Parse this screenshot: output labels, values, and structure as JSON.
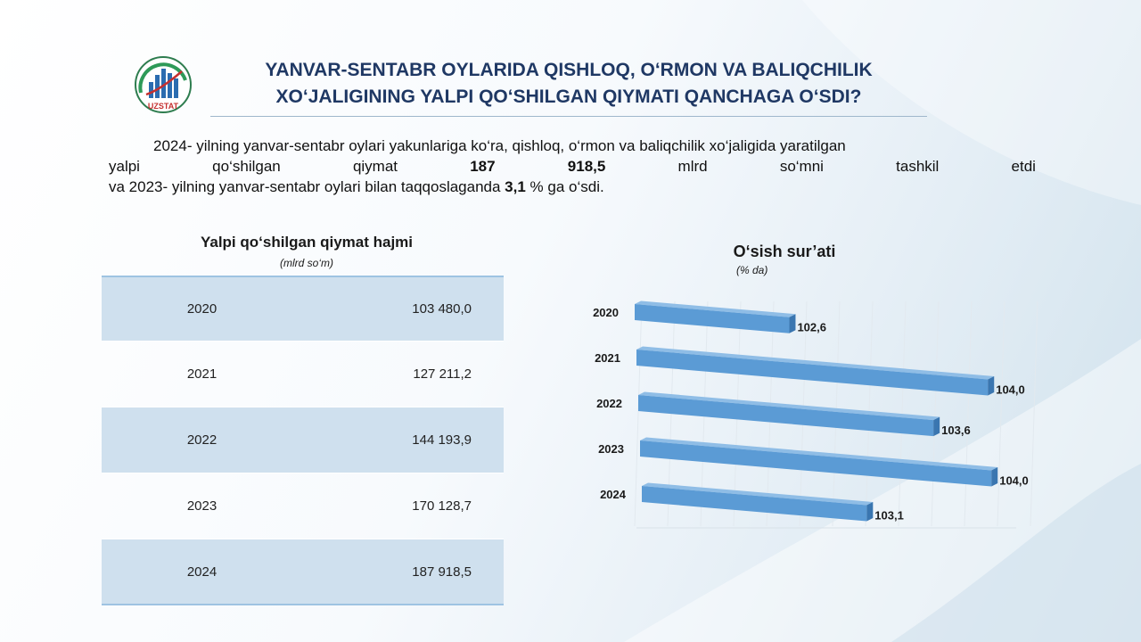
{
  "header": {
    "title_line1": "YANVAR-SENTABR OYLARIDA QISHLOQ, O‘RMON VA BALIQCHILIK",
    "title_line2": "XO‘JALIGINING YALPI QO‘SHILGAN QIYMATI QANCHAGA O‘SDI?",
    "logo_text": "UZSTAT"
  },
  "intro": {
    "line1": "2024- yilning yanvar-sentabr oylari yakunlariga ko‘ra, qishloq, o‘rmon va baliqchilik xo‘jaligida yaratilgan",
    "line2_words": [
      "yalpi",
      "qo‘shilgan",
      "qiymat",
      "187",
      "918,5",
      "mlrd",
      "so‘mni",
      "tashkil",
      "etdi"
    ],
    "line3_a": "va 2023- yilning yanvar-sentabr oylari bilan taqqoslaganda ",
    "line3_b": "3,1",
    "line3_c": " % ga o‘sdi."
  },
  "table": {
    "title": "Yalpi qo‘shilgan qiymat hajmi",
    "unit": "(mlrd so‘m)",
    "rows": [
      {
        "year": "2020",
        "value": "103 480,0"
      },
      {
        "year": "2021",
        "value": "127 211,2"
      },
      {
        "year": "2022",
        "value": "144 193,9"
      },
      {
        "year": "2023",
        "value": "170 128,7"
      },
      {
        "year": "2024",
        "value": "187 918,5"
      }
    ]
  },
  "colors": {
    "title": "#1f3864",
    "bar_front": "#5b9bd5",
    "bar_top": "#8fbde6",
    "bar_side": "#3a76b0",
    "table_shade": "#cfe0ee",
    "table_border": "#9ec3e2"
  },
  "chart_data": {
    "type": "bar",
    "orientation": "horizontal",
    "style": "3d",
    "title": "O‘sish sur’ati",
    "subtitle": "(% da)",
    "categories": [
      "2020",
      "2021",
      "2022",
      "2023",
      "2024"
    ],
    "values": [
      102.6,
      104.0,
      103.6,
      104.0,
      103.1
    ],
    "labels": [
      "102,6",
      "104,0",
      "103,6",
      "104,0",
      "103,1"
    ],
    "xlim": [
      101.5,
      104.1
    ],
    "grid": true,
    "legend": "none"
  }
}
